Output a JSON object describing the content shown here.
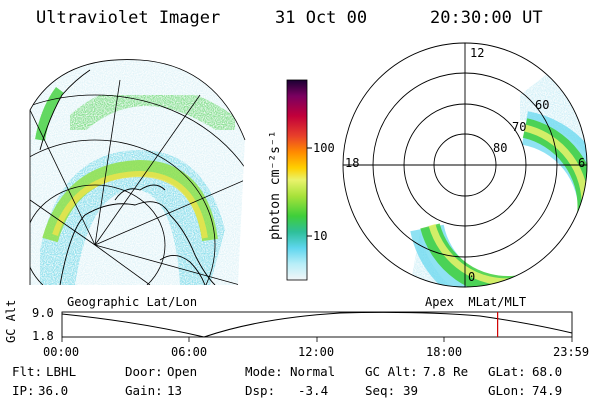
{
  "header": {
    "title": "Ultraviolet Imager",
    "date": "31 Oct 00",
    "time": "20:30:00 UT"
  },
  "colorbar": {
    "label": "photon cm⁻²s⁻¹",
    "ticks": [
      "100",
      "10"
    ],
    "colors": [
      "#1a0033",
      "#7a0060",
      "#c2003a",
      "#e8402a",
      "#ff8a00",
      "#ffd000",
      "#e9f36b",
      "#a8e23a",
      "#3fcf3a",
      "#2fbf9a",
      "#5fd6ee",
      "#b8eef8",
      "#f2f6f8"
    ]
  },
  "left_map": {
    "caption": "Geographic Lat/Lon"
  },
  "right_polar": {
    "caption": "Apex  MLat/MLT",
    "mlt_labels": [
      "12",
      "18",
      "6",
      "0"
    ],
    "lat_labels": [
      "60",
      "70",
      "80"
    ]
  },
  "altitude_plot": {
    "ylabel": "GC Alt",
    "yticks": [
      "9.0",
      "1.8"
    ],
    "xticks": [
      "00:00",
      "06:00",
      "12:00",
      "18:00",
      "23:59"
    ],
    "current_marker_hour": 20.5,
    "marker_color": "#d00000"
  },
  "info": {
    "filter_label": "Flt:",
    "filter_value": "LBHL",
    "door_label": "Door:",
    "door_value": "Open",
    "mode_label": "Mode:",
    "mode_value": "Normal",
    "gcalt_label": "GC Alt:",
    "gcalt_value": "7.8 Re",
    "glat_label": "GLat:",
    "glat_value": "68.0",
    "ip_label": "IP:",
    "ip_value": "36.0",
    "gain_label": "Gain:",
    "gain_value": "13",
    "dsp_label": "Dsp:",
    "dsp_value": "-3.4",
    "seq_label": "Seq:",
    "seq_value": "39",
    "glon_label": "GLon:",
    "glon_value": "74.9"
  }
}
